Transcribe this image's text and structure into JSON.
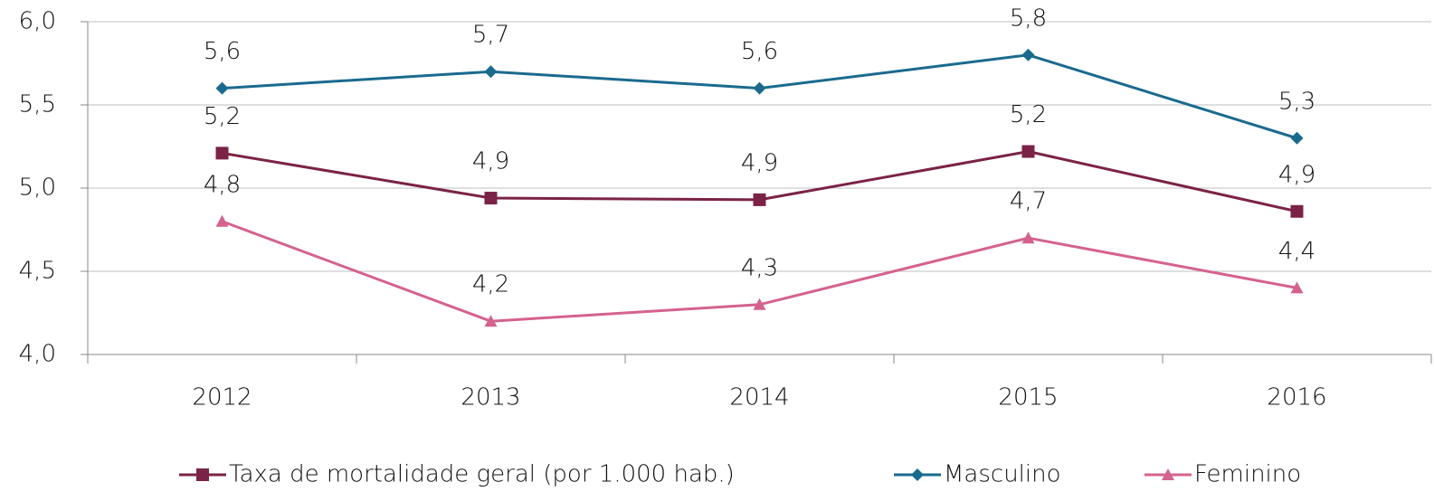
{
  "chart_data": {
    "type": "line",
    "categories": [
      "2012",
      "2013",
      "2014",
      "2015",
      "2016"
    ],
    "series": [
      {
        "name": "Taxa de mortalidade geral (por 1.000 hab.)",
        "color": "#7b2346",
        "marker": "square",
        "values": [
          5.21,
          4.94,
          4.93,
          5.22,
          4.86
        ],
        "value_labels": [
          "5,2",
          "4,9",
          "4,9",
          "5,2",
          "4,9"
        ]
      },
      {
        "name": "Masculino",
        "color": "#1a6a8e",
        "marker": "diamond",
        "values": [
          5.6,
          5.7,
          5.6,
          5.8,
          5.3
        ],
        "value_labels": [
          "5,6",
          "5,7",
          "5,6",
          "5,8",
          "5,3"
        ]
      },
      {
        "name": "Feminino",
        "color": "#d4628f",
        "marker": "triangle",
        "values": [
          4.8,
          4.2,
          4.3,
          4.7,
          4.4
        ],
        "value_labels": [
          "4,8",
          "4,2",
          "4,3",
          "4,7",
          "4,4"
        ]
      }
    ],
    "ylim": [
      4,
      6
    ],
    "yticks": [
      {
        "value": 4,
        "label": "4,0"
      },
      {
        "value": 4.5,
        "label": "4,5"
      },
      {
        "value": 5,
        "label": "5,0"
      },
      {
        "value": 5.5,
        "label": "5,5"
      },
      {
        "value": 6,
        "label": "6,0"
      }
    ],
    "grid": true,
    "legend": "bottom"
  }
}
